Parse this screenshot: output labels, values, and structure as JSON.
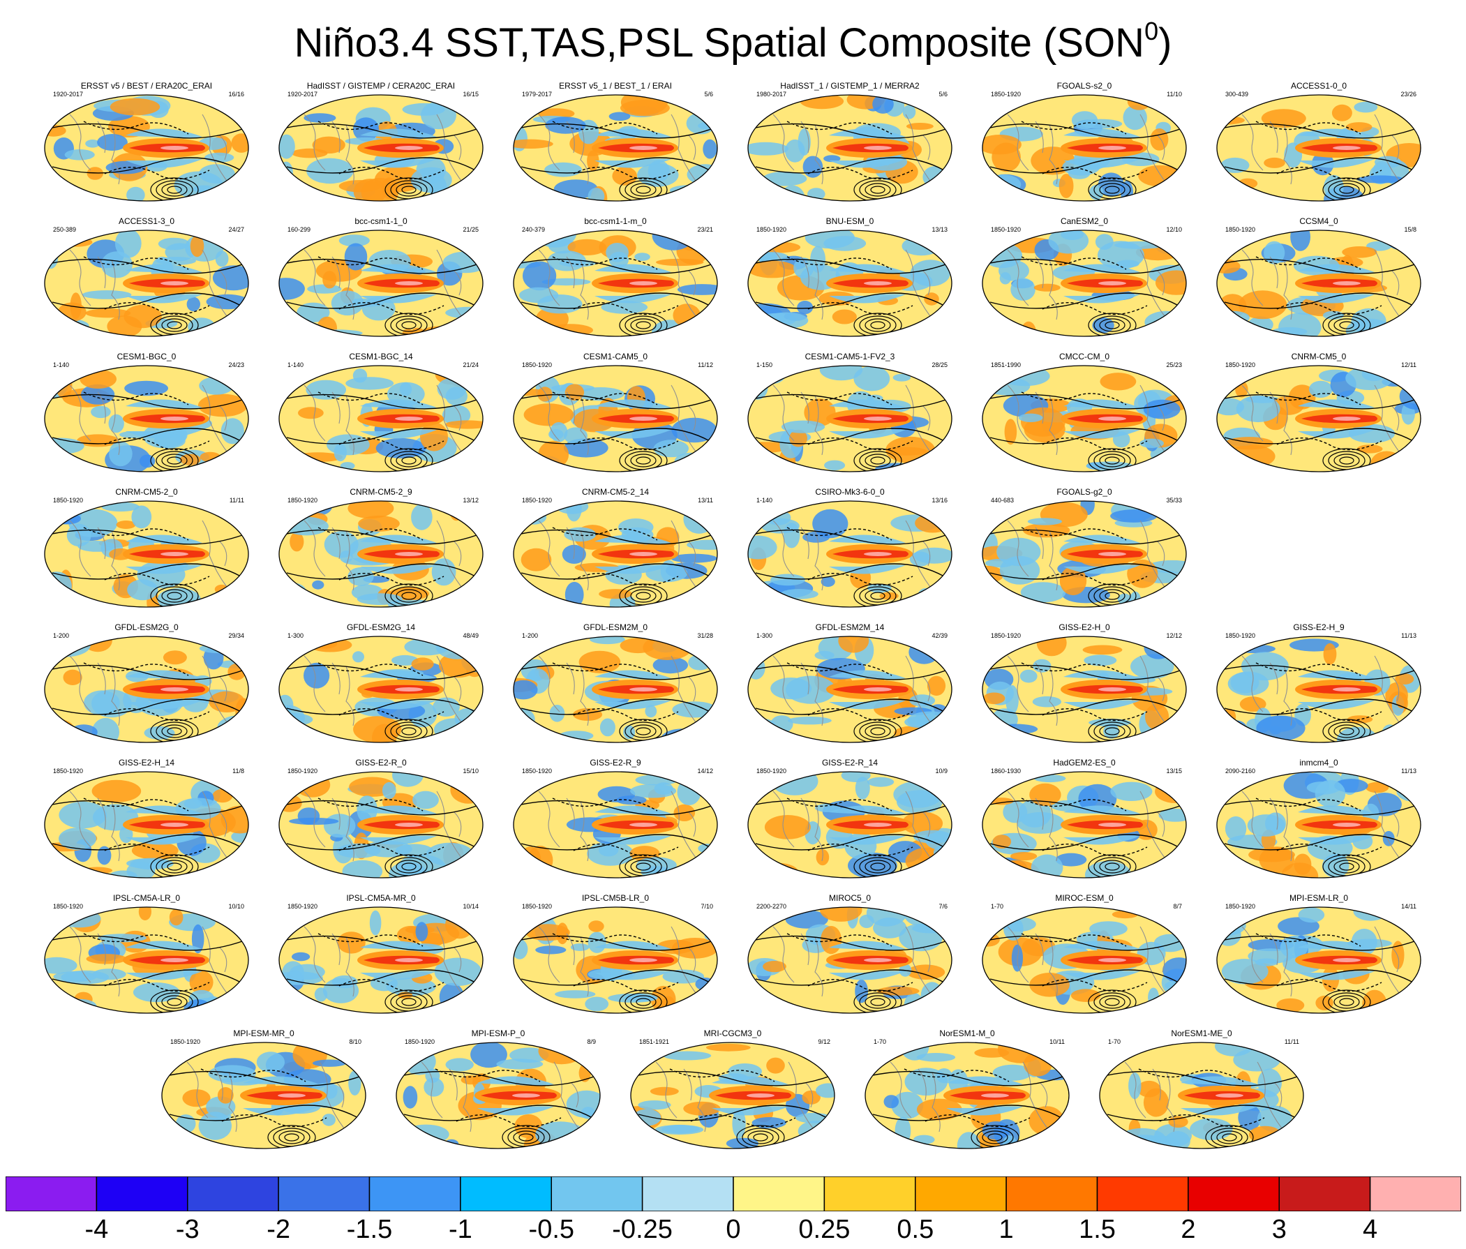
{
  "title": {
    "main": "Niño3.4 SST,TAS,PSL Spatial Composite (SON",
    "superscript": "0",
    "close": ")"
  },
  "panels": [
    {
      "title": "ERSST v5 / BEST / ERA20C_ERAI",
      "period": "1920-2017",
      "count": "16/16"
    },
    {
      "title": "HadISST / GISTEMP / CERA20C_ERAI",
      "period": "1920-2017",
      "count": "16/15"
    },
    {
      "title": "ERSST v5_1 / BEST_1 / ERAI",
      "period": "1979-2017",
      "count": "5/6"
    },
    {
      "title": "HadISST_1 / GISTEMP_1 / MERRA2",
      "period": "1980-2017",
      "count": "5/6"
    },
    {
      "title": "FGOALS-s2_0",
      "period": "1850-1920",
      "count": "11/10"
    },
    {
      "title": "ACCESS1-0_0",
      "period": "300-439",
      "count": "23/26"
    },
    {
      "title": "ACCESS1-3_0",
      "period": "250-389",
      "count": "24/27"
    },
    {
      "title": "bcc-csm1-1_0",
      "period": "160-299",
      "count": "21/25"
    },
    {
      "title": "bcc-csm1-1-m_0",
      "period": "240-379",
      "count": "23/21"
    },
    {
      "title": "BNU-ESM_0",
      "period": "1850-1920",
      "count": "13/13"
    },
    {
      "title": "CanESM2_0",
      "period": "1850-1920",
      "count": "12/10"
    },
    {
      "title": "CCSM4_0",
      "period": "1850-1920",
      "count": "15/8"
    },
    {
      "title": "CESM1-BGC_0",
      "period": "1-140",
      "count": "24/23"
    },
    {
      "title": "CESM1-BGC_14",
      "period": "1-140",
      "count": "21/24"
    },
    {
      "title": "CESM1-CAM5_0",
      "period": "1850-1920",
      "count": "11/12"
    },
    {
      "title": "CESM1-CAM5-1-FV2_3",
      "period": "1-150",
      "count": "28/25"
    },
    {
      "title": "CMCC-CM_0",
      "period": "1851-1990",
      "count": "25/23"
    },
    {
      "title": "CNRM-CM5_0",
      "period": "1850-1920",
      "count": "12/11"
    },
    {
      "title": "CNRM-CM5-2_0",
      "period": "1850-1920",
      "count": "11/11"
    },
    {
      "title": "CNRM-CM5-2_9",
      "period": "1850-1920",
      "count": "13/12"
    },
    {
      "title": "CNRM-CM5-2_14",
      "period": "1850-1920",
      "count": "13/11"
    },
    {
      "title": "CSIRO-Mk3-6-0_0",
      "period": "1-140",
      "count": "13/16"
    },
    {
      "title": "FGOALS-g2_0",
      "period": "440-683",
      "count": "35/33"
    },
    {
      "title": "GFDL-ESM2G_0",
      "period": "1-200",
      "count": "29/34"
    },
    {
      "title": "GFDL-ESM2G_14",
      "period": "1-300",
      "count": "48/49"
    },
    {
      "title": "GFDL-ESM2M_0",
      "period": "1-200",
      "count": "31/28"
    },
    {
      "title": "GFDL-ESM2M_14",
      "period": "1-300",
      "count": "42/39"
    },
    {
      "title": "GISS-E2-H_0",
      "period": "1850-1920",
      "count": "12/12"
    },
    {
      "title": "GISS-E2-H_9",
      "period": "1850-1920",
      "count": "11/13"
    },
    {
      "title": "GISS-E2-H_14",
      "period": "1850-1920",
      "count": "11/8"
    },
    {
      "title": "GISS-E2-R_0",
      "period": "1850-1920",
      "count": "15/10"
    },
    {
      "title": "GISS-E2-R_9",
      "period": "1850-1920",
      "count": "14/12"
    },
    {
      "title": "GISS-E2-R_14",
      "period": "1850-1920",
      "count": "10/9"
    },
    {
      "title": "HadGEM2-ES_0",
      "period": "1860-1930",
      "count": "13/15"
    },
    {
      "title": "inmcm4_0",
      "period": "2090-2160",
      "count": "11/13"
    },
    {
      "title": "IPSL-CM5A-LR_0",
      "period": "1850-1920",
      "count": "10/10"
    },
    {
      "title": "IPSL-CM5A-MR_0",
      "period": "1850-1920",
      "count": "10/14"
    },
    {
      "title": "IPSL-CM5B-LR_0",
      "period": "1850-1920",
      "count": "7/10"
    },
    {
      "title": "MIROC5_0",
      "period": "2200-2270",
      "count": "7/6"
    },
    {
      "title": "MIROC-ESM_0",
      "period": "1-70",
      "count": "8/7"
    },
    {
      "title": "MPI-ESM-LR_0",
      "period": "1850-1920",
      "count": "14/11"
    },
    {
      "title": "MPI-ESM-MR_0",
      "period": "1850-1920",
      "count": "8/10"
    },
    {
      "title": "MPI-ESM-P_0",
      "period": "1850-1920",
      "count": "8/9"
    },
    {
      "title": "MRI-CGCM3_0",
      "period": "1851-1921",
      "count": "9/12"
    },
    {
      "title": "NorESM1-M_0",
      "period": "1-70",
      "count": "10/11"
    },
    {
      "title": "NorESM1-ME_0",
      "period": "1-70",
      "count": "11/11"
    }
  ],
  "colorbar": {
    "colors": [
      "#8b1cf0",
      "#1e00f5",
      "#2e44e0",
      "#3a72e8",
      "#3d95f5",
      "#00bcff",
      "#72c6ef",
      "#b4e0f3",
      "#fff588",
      "#ffd02a",
      "#ffa800",
      "#ff7800",
      "#ff3a00",
      "#e80000",
      "#c81b1b",
      "#ffb0b0"
    ],
    "labels": [
      "-4",
      "-3",
      "-2",
      "-1.5",
      "-1",
      "-0.5",
      "-0.25",
      "0",
      "0.25",
      "0.5",
      "1",
      "1.5",
      "2",
      "3",
      "4"
    ]
  },
  "map_colors": {
    "ocean_base": "#ffe77a",
    "warm": "#ff9b1a",
    "hot": "#f2350f",
    "hottest": "#ffc0c0",
    "cool": "#74c4ee",
    "cold": "#3d8ff0",
    "coast": "#909090",
    "contour": "#000000"
  }
}
